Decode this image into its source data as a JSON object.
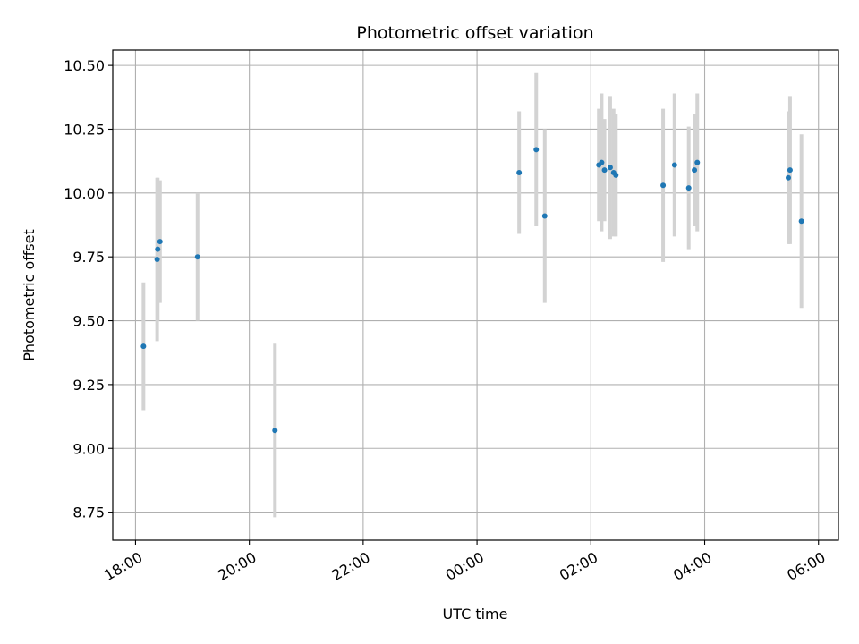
{
  "chart_data": {
    "type": "scatter",
    "title": "Photometric offset variation",
    "xlabel": "UTC time",
    "ylabel": "Photometric offset",
    "grid": true,
    "x_unit": "hours since 18:00 UTC",
    "xlim": [
      -0.4,
      12.35
    ],
    "ylim": [
      8.64,
      10.56
    ],
    "x_ticks": [
      {
        "value": 0,
        "label": "18:00"
      },
      {
        "value": 2,
        "label": "20:00"
      },
      {
        "value": 4,
        "label": "22:00"
      },
      {
        "value": 6,
        "label": "00:00"
      },
      {
        "value": 8,
        "label": "02:00"
      },
      {
        "value": 10,
        "label": "04:00"
      },
      {
        "value": 12,
        "label": "06:00"
      }
    ],
    "y_ticks": [
      {
        "value": 8.75,
        "label": "8.75"
      },
      {
        "value": 9.0,
        "label": "9.00"
      },
      {
        "value": 9.25,
        "label": "9.25"
      },
      {
        "value": 9.5,
        "label": "9.50"
      },
      {
        "value": 9.75,
        "label": "9.75"
      },
      {
        "value": 10.0,
        "label": "10.00"
      },
      {
        "value": 10.25,
        "label": "10.25"
      },
      {
        "value": 10.5,
        "label": "10.50"
      }
    ],
    "colors": {
      "marker": "#1f77b4",
      "errorbar": "#d3d3d3",
      "grid": "#b0b0b0",
      "axis": "#000000"
    },
    "points": [
      {
        "x": 0.14,
        "y": 9.4,
        "err": 0.25
      },
      {
        "x": 0.38,
        "y": 9.74,
        "err": 0.32
      },
      {
        "x": 0.39,
        "y": 9.78,
        "err": 0.28
      },
      {
        "x": 0.43,
        "y": 9.81,
        "err": 0.24
      },
      {
        "x": 1.09,
        "y": 9.75,
        "err": 0.25
      },
      {
        "x": 2.45,
        "y": 9.07,
        "err": 0.34
      },
      {
        "x": 6.74,
        "y": 10.08,
        "err": 0.24
      },
      {
        "x": 7.04,
        "y": 10.17,
        "err": 0.3
      },
      {
        "x": 7.19,
        "y": 9.91,
        "err": 0.34
      },
      {
        "x": 8.14,
        "y": 10.11,
        "err": 0.22
      },
      {
        "x": 8.19,
        "y": 10.12,
        "err": 0.27
      },
      {
        "x": 8.24,
        "y": 10.09,
        "err": 0.2
      },
      {
        "x": 8.34,
        "y": 10.1,
        "err": 0.28
      },
      {
        "x": 8.4,
        "y": 10.08,
        "err": 0.25
      },
      {
        "x": 8.44,
        "y": 10.07,
        "err": 0.24
      },
      {
        "x": 9.27,
        "y": 10.03,
        "err": 0.3
      },
      {
        "x": 9.47,
        "y": 10.11,
        "err": 0.28
      },
      {
        "x": 9.72,
        "y": 10.02,
        "err": 0.24
      },
      {
        "x": 9.82,
        "y": 10.09,
        "err": 0.22
      },
      {
        "x": 9.87,
        "y": 10.12,
        "err": 0.27
      },
      {
        "x": 11.47,
        "y": 10.06,
        "err": 0.26
      },
      {
        "x": 11.5,
        "y": 10.09,
        "err": 0.29
      },
      {
        "x": 11.7,
        "y": 9.89,
        "err": 0.34
      }
    ]
  }
}
